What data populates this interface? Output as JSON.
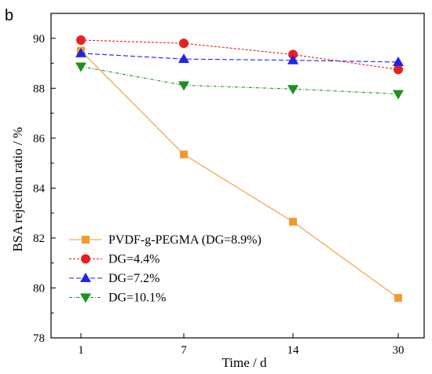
{
  "panel_label": "b",
  "chart_data": {
    "type": "line",
    "xlabel": "Time / d",
    "ylabel": "BSA rejection ratio / %",
    "categories": [
      "1",
      "7",
      "14",
      "30"
    ],
    "ylim": [
      78,
      91
    ],
    "yticks": [
      78,
      80,
      82,
      84,
      86,
      88,
      90
    ],
    "grid": false,
    "legend_position": "bottom-left",
    "series": [
      {
        "name": "PVDF-g-PEGMA (DG=8.9%)",
        "values": [
          89.5,
          85.35,
          82.65,
          79.6
        ],
        "color": "#f39a2d",
        "marker": "square",
        "dash": "none"
      },
      {
        "name": "DG=4.4%",
        "values": [
          89.93,
          89.8,
          89.35,
          88.75
        ],
        "color": "#e8211e",
        "marker": "circle",
        "dash": "3,2"
      },
      {
        "name": "DG=7.2%",
        "values": [
          89.4,
          89.17,
          89.12,
          89.05
        ],
        "color": "#1f26e6",
        "marker": "triangle-up",
        "dash": "6,3"
      },
      {
        "name": "DG=10.1%",
        "values": [
          88.87,
          88.12,
          87.97,
          87.77
        ],
        "color": "#1f8f1f",
        "marker": "triangle-down",
        "dash": "4,2,1,2"
      }
    ]
  }
}
